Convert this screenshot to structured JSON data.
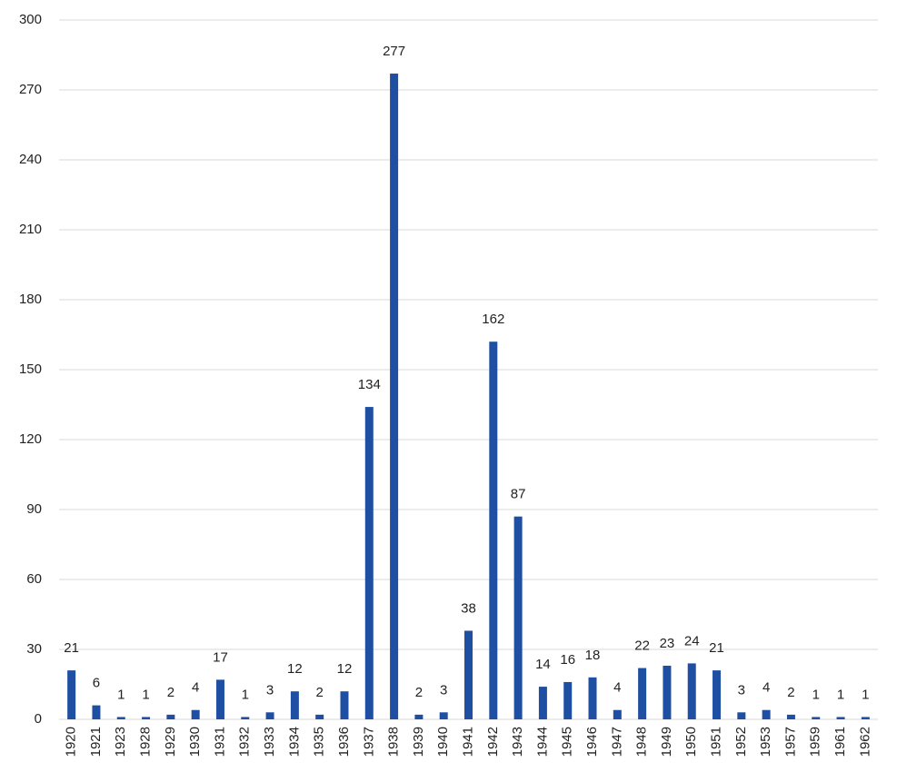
{
  "chart_data": {
    "type": "bar",
    "categories": [
      "1920",
      "1921",
      "1923",
      "1928",
      "1929",
      "1930",
      "1931",
      "1932",
      "1933",
      "1934",
      "1935",
      "1936",
      "1937",
      "1938",
      "1939",
      "1940",
      "1941",
      "1942",
      "1943",
      "1944",
      "1945",
      "1946",
      "1947",
      "1948",
      "1949",
      "1950",
      "1951",
      "1952",
      "1953",
      "1957",
      "1959",
      "1961",
      "1962"
    ],
    "values": [
      21,
      6,
      1,
      1,
      2,
      4,
      17,
      1,
      3,
      12,
      2,
      12,
      134,
      277,
      2,
      3,
      38,
      162,
      87,
      14,
      16,
      18,
      4,
      22,
      23,
      24,
      21,
      3,
      4,
      2,
      1,
      1,
      1
    ],
    "color": "#1f4fa3",
    "ylim": [
      0,
      300
    ],
    "yticks": [
      0,
      30,
      60,
      90,
      120,
      150,
      180,
      210,
      240,
      270,
      300
    ],
    "grid": true
  }
}
